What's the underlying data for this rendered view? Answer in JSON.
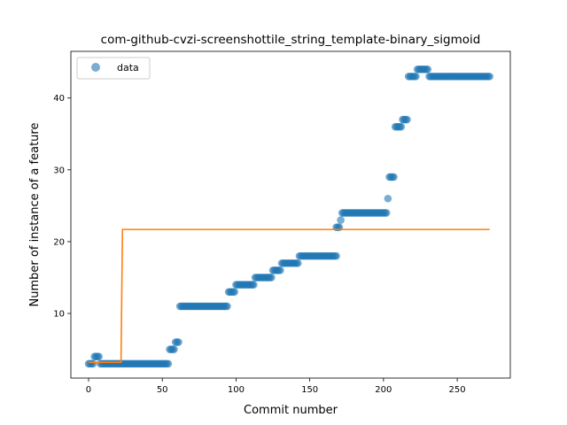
{
  "chart_data": {
    "type": "scatter",
    "title": "com-github-cvzi-screenshottile_string_template-binary_sigmoid",
    "xlabel": "Commit number",
    "ylabel": "Number of instance of a feature",
    "xlim": [
      -12,
      286
    ],
    "ylim": [
      1,
      46.5
    ],
    "xticks": [
      0,
      50,
      100,
      150,
      200,
      250
    ],
    "yticks": [
      10,
      20,
      30,
      40
    ],
    "grid": false,
    "legend_position": "upper-left",
    "legend": [
      "data"
    ],
    "colors": {
      "data": "#1f77b4",
      "fit": "#ff7f0e"
    },
    "series": [
      {
        "name": "data",
        "kind": "scatter",
        "segments": [
          {
            "x_start": 0,
            "x_end": 3,
            "y": 3
          },
          {
            "x_start": 4,
            "x_end": 7,
            "y": 4
          },
          {
            "x_start": 8,
            "x_end": 54,
            "y": 3
          },
          {
            "x_start": 55,
            "x_end": 58,
            "y": 5
          },
          {
            "x_start": 59,
            "x_end": 61,
            "y": 6
          },
          {
            "x_start": 62,
            "x_end": 94,
            "y": 11
          },
          {
            "x_start": 95,
            "x_end": 99,
            "y": 13
          },
          {
            "x_start": 100,
            "x_end": 112,
            "y": 14
          },
          {
            "x_start": 113,
            "x_end": 124,
            "y": 15
          },
          {
            "x_start": 125,
            "x_end": 130,
            "y": 16
          },
          {
            "x_start": 131,
            "x_end": 142,
            "y": 17
          },
          {
            "x_start": 143,
            "x_end": 168,
            "y": 18
          },
          {
            "x_start": 168,
            "x_end": 170,
            "y": 22
          },
          {
            "x_start": 171,
            "x_end": 171,
            "y": 23
          },
          {
            "x_start": 172,
            "x_end": 202,
            "y": 24
          },
          {
            "x_start": 203,
            "x_end": 203,
            "y": 26
          },
          {
            "x_start": 204,
            "x_end": 207,
            "y": 29
          },
          {
            "x_start": 208,
            "x_end": 212,
            "y": 36
          },
          {
            "x_start": 213,
            "x_end": 216,
            "y": 37
          },
          {
            "x_start": 217,
            "x_end": 222,
            "y": 43
          },
          {
            "x_start": 223,
            "x_end": 230,
            "y": 44
          },
          {
            "x_start": 231,
            "x_end": 272,
            "y": 43
          }
        ]
      },
      {
        "kind": "line",
        "x": [
          0,
          22,
          23,
          272
        ],
        "y": [
          3.2,
          3.2,
          21.7,
          21.7
        ]
      }
    ]
  }
}
